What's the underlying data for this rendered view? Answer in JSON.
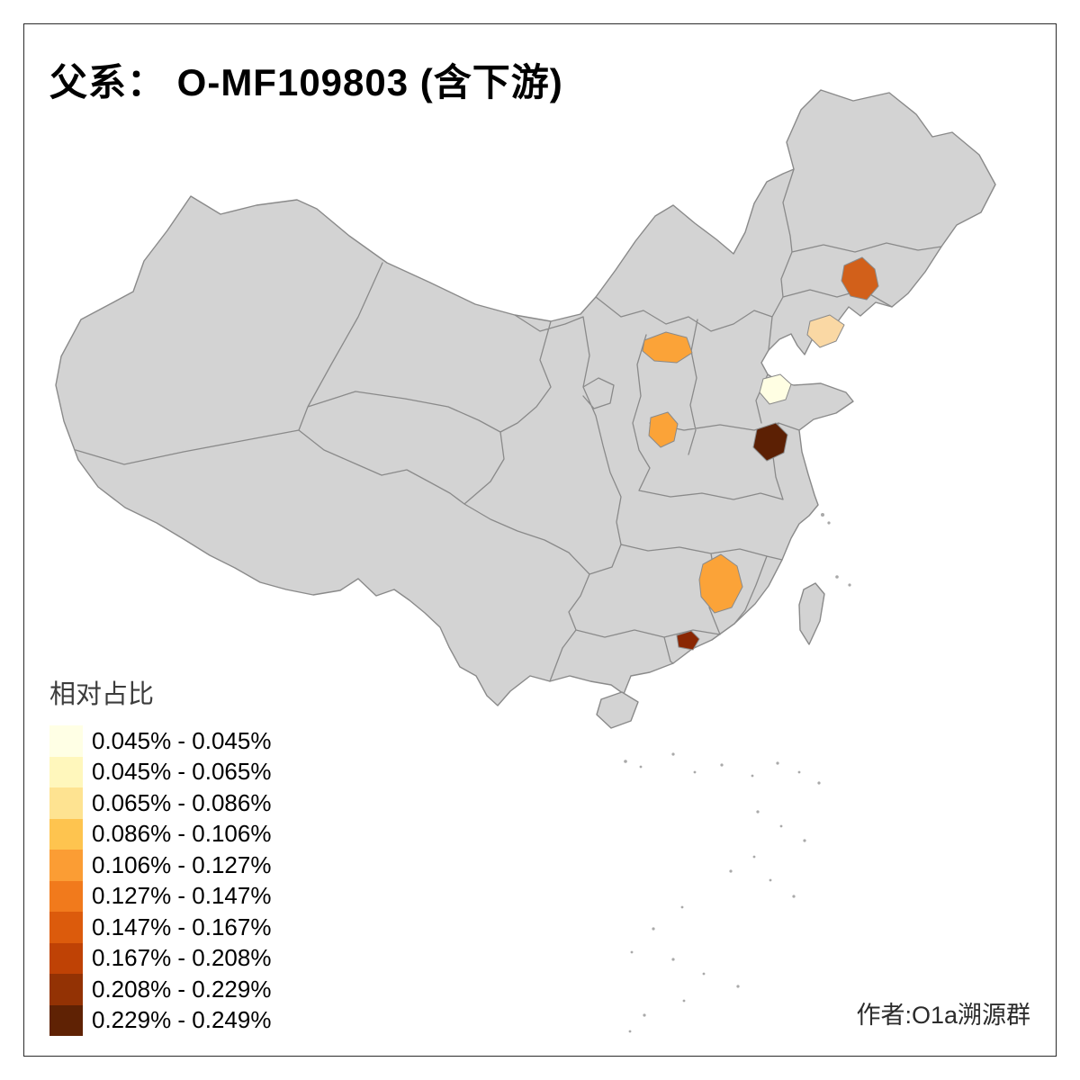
{
  "title": "父系：  O-MF109803 (含下游)",
  "author": "作者:O1a溯源群",
  "legend": {
    "title": "相对占比",
    "items": [
      {
        "range": "0.045% - 0.045%",
        "color": "#FFFFE5"
      },
      {
        "range": "0.045% - 0.065%",
        "color": "#FFF7BC"
      },
      {
        "range": "0.065% - 0.086%",
        "color": "#FEE391"
      },
      {
        "range": "0.086% - 0.106%",
        "color": "#FEC44F"
      },
      {
        "range": "0.106% - 0.127%",
        "color": "#FB9D34"
      },
      {
        "range": "0.127% - 0.147%",
        "color": "#F17A1C"
      },
      {
        "range": "0.147% - 0.167%",
        "color": "#DC5B0C"
      },
      {
        "range": "0.167% - 0.208%",
        "color": "#BF4205"
      },
      {
        "range": "0.208% - 0.229%",
        "color": "#933204"
      },
      {
        "range": "0.229% - 0.249%",
        "color": "#5F2204"
      }
    ]
  },
  "map": {
    "land_fill": "#D3D3D3",
    "border_color": "#8A8A8A",
    "regions": [
      {
        "name": "liaoning-central",
        "range": "0.147% - 0.167%",
        "color": "#D2601A"
      },
      {
        "name": "liaodong-peninsula",
        "range": "0.065% - 0.086%",
        "color": "#FAD8A4"
      },
      {
        "name": "north-shanxi",
        "range": "0.106% - 0.127%",
        "color": "#FBA338"
      },
      {
        "name": "northwest-shandong",
        "range": "0.045% - 0.045%",
        "color": "#FFFEE3"
      },
      {
        "name": "south-shanxi",
        "range": "0.106% - 0.127%",
        "color": "#FBA338"
      },
      {
        "name": "north-jiangsu-anhui",
        "range": "0.229% - 0.249%",
        "color": "#5C2004"
      },
      {
        "name": "south-hunan",
        "range": "0.106% - 0.127%",
        "color": "#FBA338"
      },
      {
        "name": "pearl-river-delta",
        "range": "0.208% - 0.229%",
        "color": "#8A2703"
      }
    ]
  }
}
